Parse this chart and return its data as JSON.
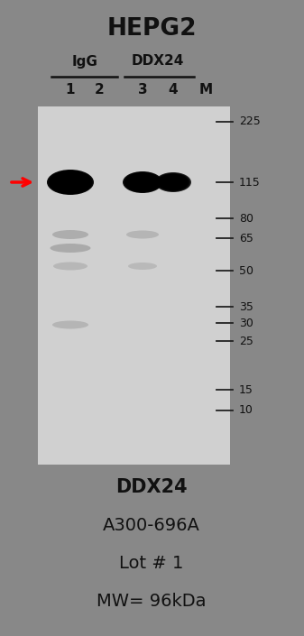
{
  "title": "HEPG2",
  "background_color": "#888888",
  "font_color": "#111111",
  "header_igg": "IgG",
  "header_ddx24": "DDX24",
  "lane_labels": [
    "1",
    "2",
    "3",
    "4",
    "M"
  ],
  "mw_markers": [
    225,
    115,
    80,
    65,
    50,
    35,
    30,
    25,
    15,
    10
  ],
  "bottom_labels": [
    "DDX24",
    "A300-696A",
    "Lot # 1",
    "MW= 96kDa"
  ],
  "arrow_color": "red",
  "gel_color": "#d0d0d0"
}
